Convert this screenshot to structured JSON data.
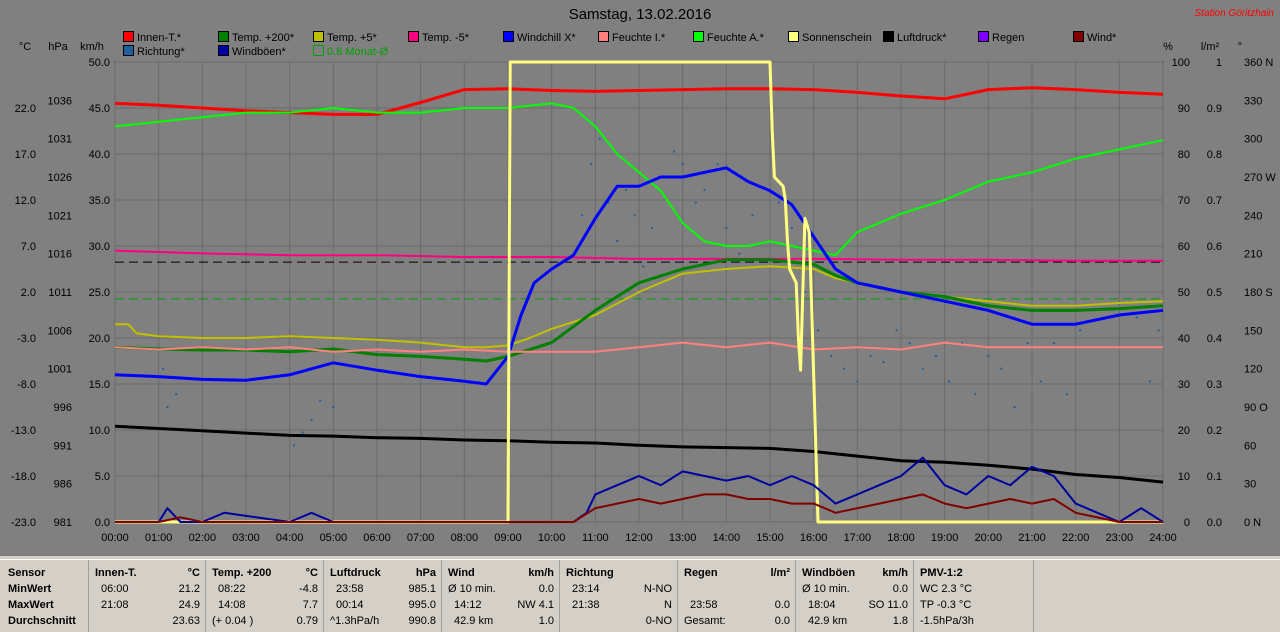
{
  "title": "Samstag, 13.02.2016",
  "station": "Station Göritzhain",
  "legend": [
    {
      "label": "Innen-T.*",
      "color": "#ff0000"
    },
    {
      "label": "Richtung*",
      "color": "#2060a0"
    },
    {
      "label": "Temp. +200*",
      "color": "#008000"
    },
    {
      "label": "Windböen*",
      "color": "#0000a0"
    },
    {
      "label": "Temp. +5*",
      "color": "#c0c000"
    },
    {
      "label": "0.8 Monat-Ø",
      "color": "#00a000"
    },
    {
      "label": "Temp. -5*",
      "color": "#ff0080"
    },
    {
      "label": "Windchill X*",
      "color": "#0000ff"
    },
    {
      "label": "Feuchte I.*",
      "color": "#ff8080"
    },
    {
      "label": "Feuchte A.*",
      "color": "#00ff00"
    },
    {
      "label": "Sonnenschein",
      "color": "#ffff80"
    },
    {
      "label": "Luftdruck*",
      "color": "#000000"
    },
    {
      "label": "Regen",
      "color": "#8000ff"
    },
    {
      "label": "Wind*",
      "color": "#800000"
    }
  ],
  "axis_headers": {
    "c": "°C",
    "hpa": "hPa",
    "kmh": "km/h",
    "pct": "%",
    "lm2": "l/m²",
    "deg": "°"
  },
  "chart_data": {
    "type": "line",
    "title": "Samstag, 13.02.2016",
    "x_labels": [
      "00:00",
      "01:00",
      "02:00",
      "03:00",
      "04:00",
      "05:00",
      "06:00",
      "07:00",
      "08:00",
      "09:00",
      "10:00",
      "11:00",
      "12:00",
      "13:00",
      "14:00",
      "15:00",
      "16:00",
      "17:00",
      "18:00",
      "19:00",
      "20:00",
      "21:00",
      "22:00",
      "23:00",
      "24:00"
    ],
    "axis_c": [
      "22.0",
      "17.0",
      "12.0",
      "7.0",
      "2.0",
      "-3.0",
      "-8.0",
      "-13.0",
      "-18.0",
      "-23.0"
    ],
    "axis_hpa": [
      "1036",
      "1031",
      "1026",
      "1021",
      "1016",
      "1011",
      "1006",
      "1001",
      "996",
      "991",
      "986",
      "981"
    ],
    "axis_kmh": [
      "50.0",
      "45.0",
      "40.0",
      "35.0",
      "30.0",
      "25.0",
      "20.0",
      "15.0",
      "10.0",
      "5.0",
      "0.0"
    ],
    "axis_pct": [
      "100",
      "90",
      "80",
      "70",
      "60",
      "50",
      "40",
      "30",
      "20",
      "10",
      "0"
    ],
    "axis_lm2": [
      "1",
      "0.9",
      "0.8",
      "0.7",
      "0.6",
      "0.5",
      "0.4",
      "0.3",
      "0.2",
      "0.1",
      "0.0"
    ],
    "axis_deg": [
      "360 N",
      "330",
      "300",
      "270 W",
      "240",
      "210",
      "180 S",
      "150",
      "120",
      "90 O",
      "60",
      "30",
      "0 N"
    ],
    "series": [
      {
        "name": "Innen-T.*",
        "color": "#ff0000",
        "axis": "c",
        "width": 3,
        "x": [
          0,
          1,
          2,
          3,
          4,
          5,
          6,
          7,
          8,
          9,
          10,
          11,
          12,
          13,
          14,
          15,
          16,
          17,
          18,
          19,
          20,
          21,
          22,
          23,
          24
        ],
        "y": [
          22.5,
          22.3,
          22.0,
          21.7,
          21.5,
          21.3,
          21.3,
          22.6,
          24.0,
          24.1,
          23.9,
          23.8,
          23.9,
          24.0,
          24.1,
          24.1,
          24.0,
          23.7,
          23.3,
          23.0,
          24.0,
          24.2,
          24.0,
          23.7,
          23.5
        ]
      },
      {
        "name": "Feuchte A.*",
        "color": "#00ff00",
        "axis": "pct",
        "width": 2,
        "x": [
          0,
          1,
          2,
          3,
          4,
          5,
          6,
          7,
          8,
          9,
          10,
          10.5,
          11,
          11.5,
          12,
          12.5,
          13,
          13.5,
          14,
          14.5,
          15,
          15.5,
          16,
          16.5,
          17,
          18,
          19,
          20,
          21,
          22,
          23,
          24
        ],
        "y": [
          86,
          87,
          88,
          89,
          89,
          90,
          89,
          89,
          90,
          90,
          91,
          90,
          86,
          80,
          76,
          72,
          65,
          61,
          60,
          60,
          61,
          60,
          59,
          58,
          63,
          67,
          70,
          74,
          76,
          79,
          81,
          83
        ]
      },
      {
        "name": "Temp. -5*",
        "color": "#ff0080",
        "axis": "kmh",
        "width": 2,
        "x": [
          0,
          2,
          4,
          6,
          8,
          10,
          12,
          14,
          16,
          18,
          20,
          22,
          24
        ],
        "y": [
          29.5,
          29.2,
          29.0,
          29.0,
          28.8,
          28.8,
          28.6,
          28.6,
          28.6,
          28.5,
          28.5,
          28.4,
          28.4
        ]
      },
      {
        "name": "Temp. +5*",
        "color": "#c0c000",
        "axis": "c",
        "width": 2,
        "x": [
          0,
          0.3,
          0.5,
          1,
          2,
          3,
          4,
          5,
          6,
          7,
          8,
          8.5,
          9,
          9.5,
          10,
          11,
          12,
          13,
          14,
          15,
          16,
          16.5,
          17,
          18,
          19,
          20,
          21,
          22,
          23,
          24
        ],
        "y": [
          -1.5,
          -1.5,
          -2.5,
          -2.8,
          -3.0,
          -3.0,
          -2.8,
          -3.0,
          -3.2,
          -3.5,
          -4.0,
          -4.0,
          -3.8,
          -3.0,
          -2.0,
          -0.5,
          2.0,
          4.0,
          4.5,
          4.8,
          4.5,
          3.5,
          3.0,
          2.0,
          1.5,
          1.0,
          0.5,
          0.5,
          0.8,
          1.0
        ]
      },
      {
        "name": "Temp. +200*",
        "color": "#008000",
        "axis": "c",
        "width": 3,
        "x": [
          0,
          1,
          2,
          3,
          4,
          5,
          6,
          7,
          8,
          8.5,
          9,
          10,
          11,
          12,
          13,
          14,
          15,
          16,
          16.5,
          17,
          18,
          19,
          20,
          21,
          22,
          23,
          24
        ],
        "y": [
          -4.0,
          -4.2,
          -4.3,
          -4.3,
          -4.5,
          -4.2,
          -4.8,
          -5.0,
          -5.3,
          -5.5,
          -5.0,
          -3.5,
          0.0,
          3.0,
          4.5,
          5.5,
          5.5,
          5.0,
          3.8,
          3.0,
          2.0,
          1.5,
          0.5,
          0,
          0,
          0.2,
          0.5
        ]
      },
      {
        "name": "Windchill X*",
        "color": "#0000ff",
        "axis": "c",
        "width": 3,
        "x": [
          0,
          1,
          2,
          3,
          4,
          5,
          6,
          7,
          8,
          8.5,
          9,
          9.3,
          9.6,
          10,
          10.5,
          11,
          11.5,
          12,
          12.5,
          13,
          13.5,
          14,
          14.5,
          15,
          15.5,
          16,
          16.5,
          17,
          18,
          19,
          20,
          21,
          22,
          23,
          24
        ],
        "y": [
          -7.0,
          -7.2,
          -7.5,
          -7.6,
          -7.0,
          -5.7,
          -6.5,
          -7.2,
          -7.7,
          -8.0,
          -5.0,
          -0.5,
          3.0,
          4.5,
          6.0,
          10.0,
          13.5,
          13.5,
          14.5,
          14.5,
          15.0,
          15.5,
          14.0,
          13.0,
          11.5,
          8.0,
          4.5,
          3.0,
          2.0,
          1.0,
          0.0,
          -1.5,
          -1.5,
          -0.5,
          0.0
        ]
      },
      {
        "name": "Feuchte I.*",
        "color": "#ff8080",
        "axis": "pct",
        "width": 2,
        "x": [
          0,
          1,
          2,
          3,
          4,
          5,
          6,
          7,
          8,
          9,
          10,
          11,
          12,
          13,
          14,
          15,
          16,
          17,
          18,
          19,
          20,
          21,
          22,
          23,
          24
        ],
        "y": [
          38,
          37.5,
          38,
          37.5,
          38,
          37,
          37.5,
          37,
          37.5,
          37,
          37,
          37,
          38,
          39,
          38,
          39,
          37.5,
          38,
          37.5,
          39,
          38,
          38,
          38,
          38,
          38
        ]
      },
      {
        "name": "Luftdruck*",
        "color": "#000000",
        "axis": "hpa",
        "width": 3,
        "x": [
          0,
          1,
          2,
          3,
          4,
          5,
          6,
          7,
          8,
          9,
          10,
          11,
          12,
          13,
          14,
          15,
          16,
          17,
          18,
          19,
          20,
          21,
          22,
          23,
          24
        ],
        "y": [
          993.5,
          993.2,
          992.9,
          992.6,
          992.3,
          992.2,
          992.0,
          991.9,
          991.7,
          991.6,
          991.4,
          991.3,
          991.0,
          990.8,
          990.7,
          990.6,
          990.2,
          989.6,
          989.0,
          988.8,
          988.4,
          987.9,
          987.2,
          986.8,
          986.2
        ]
      },
      {
        "name": "Sonnenschein",
        "color": "#ffff80",
        "axis": "pct",
        "width": 3,
        "x": [
          0,
          9.0,
          9.05,
          15.0,
          15.05,
          15.1,
          15.2,
          15.3,
          15.35,
          15.4,
          15.45,
          15.6,
          15.65,
          15.7,
          15.8,
          15.9,
          15.95,
          16.1,
          16.15,
          24
        ],
        "y": [
          0,
          0,
          100,
          100,
          85,
          75,
          74,
          73,
          70,
          61,
          55,
          52,
          40,
          33,
          66,
          63,
          48,
          0,
          0,
          0
        ]
      },
      {
        "name": "Windböen*",
        "color": "#0000a0",
        "axis": "kmh",
        "width": 2,
        "x": [
          0,
          1,
          1.2,
          1.5,
          2,
          2.5,
          4,
          4.5,
          5,
          10.5,
          10.8,
          11,
          11.5,
          12,
          12.5,
          13,
          13.5,
          14,
          14.5,
          15,
          15.5,
          16,
          16.5,
          17,
          17.5,
          18,
          18.5,
          19,
          19.5,
          20,
          20.5,
          21,
          21.5,
          22,
          22.5,
          23,
          23.5,
          24
        ],
        "y": [
          0,
          0,
          1.5,
          0,
          0,
          1,
          0,
          1,
          0,
          0,
          1,
          3,
          4,
          5,
          4,
          5.5,
          5,
          4.5,
          5,
          4,
          5,
          4,
          2,
          3,
          4,
          5,
          7,
          4,
          3,
          5,
          4,
          6,
          5,
          2,
          1,
          0,
          1.5,
          0
        ]
      },
      {
        "name": "Wind*",
        "color": "#800000",
        "axis": "kmh",
        "width": 2,
        "x": [
          0,
          1,
          1.5,
          2,
          10.5,
          11,
          11.5,
          12,
          12.5,
          13,
          13.5,
          14,
          14.5,
          15,
          15.5,
          16,
          16.5,
          17,
          17.5,
          18,
          18.5,
          19,
          19.5,
          20,
          20.5,
          21,
          21.5,
          22,
          22.5,
          23,
          24
        ],
        "y": [
          0,
          0,
          0.5,
          0,
          0,
          1.5,
          2,
          2.5,
          2,
          2.5,
          3,
          3,
          2.5,
          2.5,
          2,
          2,
          1,
          1.5,
          2,
          2.5,
          3,
          2,
          1.5,
          2,
          2.5,
          2,
          2.5,
          1,
          0.5,
          0,
          0
        ]
      }
    ],
    "reference_lines": [
      {
        "name": "dashed-black",
        "axis": "pct",
        "y": 56.5,
        "color": "#000000"
      },
      {
        "name": "0.8 Monat-Ø",
        "axis": "pct",
        "y": 48.5,
        "color": "#00a000"
      }
    ],
    "direction_points": {
      "color": "#2060a0",
      "x": [
        1.1,
        1.2,
        1.4,
        4.1,
        4.3,
        4.5,
        4.7,
        5.0,
        10.7,
        10.9,
        11.1,
        11.3,
        11.5,
        11.7,
        11.9,
        12.1,
        12.3,
        12.6,
        12.8,
        13.0,
        13.3,
        13.5,
        13.8,
        14.0,
        14.3,
        14.6,
        14.9,
        15.2,
        15.5,
        15.8,
        16.1,
        16.4,
        16.7,
        17.0,
        17.3,
        17.6,
        17.9,
        18.2,
        18.5,
        18.8,
        19.1,
        19.4,
        19.7,
        20.0,
        20.3,
        20.6,
        20.9,
        21.2,
        21.5,
        21.8,
        22.1,
        23.4,
        23.7,
        23.9
      ],
      "deg": [
        120,
        90,
        100,
        60,
        70,
        80,
        95,
        90,
        240,
        280,
        300,
        250,
        220,
        260,
        240,
        200,
        230,
        270,
        290,
        280,
        250,
        260,
        280,
        230,
        210,
        240,
        200,
        250,
        230,
        180,
        150,
        130,
        120,
        110,
        130,
        125,
        150,
        140,
        120,
        130,
        110,
        140,
        100,
        130,
        120,
        90,
        140,
        110,
        140,
        100,
        150,
        160,
        110,
        150
      ]
    }
  },
  "stats": {
    "headers": {
      "sensor": "Sensor",
      "min": "MinWert",
      "max": "MaxWert",
      "avg": "Durchschnitt"
    },
    "innen": {
      "h": "Innen-T.",
      "u": "°C",
      "r1a": "06:00",
      "r1b": "21.2",
      "r2a": "21:08",
      "r2b": "24.9",
      "r3b": "23.63"
    },
    "temp": {
      "h": "Temp. +200",
      "u": "°C",
      "r1a": "08:22",
      "r1b": "-4.8",
      "r2a": "14:08",
      "r2b": "7.7",
      "r3a": "(+ 0.04 )",
      "r3b": "0.79"
    },
    "luft": {
      "h": "Luftdruck",
      "u": "hPa",
      "r1a": "23:58",
      "r1b": "985.1",
      "r2a": "00:14",
      "r2b": "995.0",
      "r3a": "^1.3hPa/h",
      "r3b": "990.8"
    },
    "wind": {
      "h": "Wind",
      "u": "km/h",
      "r1a": "Ø 10 min.",
      "r1b": "0.0",
      "r2a": "14:12",
      "r2b": "NW 4.1",
      "r3a": "42.9 km",
      "r3b": "1.0"
    },
    "richtung": {
      "h": "Richtung",
      "r1a": "23:14",
      "r1b": "N-NO",
      "r2a": "21:38",
      "r2b": "N",
      "r3b": "0-NO"
    },
    "regen": {
      "h": "Regen",
      "u": "l/m²",
      "r2a": "23:58",
      "r2b": "0.0",
      "r3a": "Gesamt:",
      "r3b": "0.0",
      "r1b": "",
      "r2c": "0.0"
    },
    "boen": {
      "h": "Windböen",
      "u": "km/h",
      "r1a": "Ø 10 min.",
      "r1b": "0.0",
      "r2a": "18:04",
      "r2b": "SO 11.0",
      "r3a": "42.9 km",
      "r3b": "1.8"
    },
    "pmv": {
      "h": "PMV-1:2",
      "r1": "WC 2.3 °C",
      "r2": "TP -0.3 °C",
      "r3": "-1.5hPa/3h"
    }
  }
}
